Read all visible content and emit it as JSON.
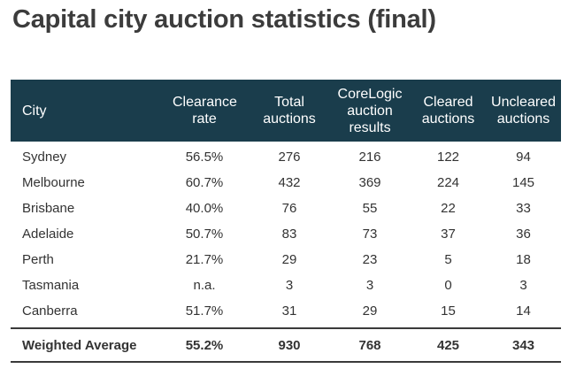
{
  "title": "Capital city auction statistics (final)",
  "table": {
    "headers": [
      "City",
      "Clearance rate",
      "Total auctions",
      "CoreLogic auction results",
      "Cleared auctions",
      "Uncleared auctions"
    ],
    "rows": [
      {
        "city": "Sydney",
        "clearance_rate": "56.5%",
        "total_auctions": "276",
        "corelogic_results": "216",
        "cleared": "122",
        "uncleared": "94"
      },
      {
        "city": "Melbourne",
        "clearance_rate": "60.7%",
        "total_auctions": "432",
        "corelogic_results": "369",
        "cleared": "224",
        "uncleared": "145"
      },
      {
        "city": "Brisbane",
        "clearance_rate": "40.0%",
        "total_auctions": "76",
        "corelogic_results": "55",
        "cleared": "22",
        "uncleared": "33"
      },
      {
        "city": "Adelaide",
        "clearance_rate": "50.7%",
        "total_auctions": "83",
        "corelogic_results": "73",
        "cleared": "37",
        "uncleared": "36"
      },
      {
        "city": "Perth",
        "clearance_rate": "21.7%",
        "total_auctions": "29",
        "corelogic_results": "23",
        "cleared": "5",
        "uncleared": "18"
      },
      {
        "city": "Tasmania",
        "clearance_rate": "n.a.",
        "total_auctions": "3",
        "corelogic_results": "3",
        "cleared": "0",
        "uncleared": "3"
      },
      {
        "city": "Canberra",
        "clearance_rate": "51.7%",
        "total_auctions": "31",
        "corelogic_results": "29",
        "cleared": "15",
        "uncleared": "14"
      }
    ],
    "total": {
      "city": "Weighted Average",
      "clearance_rate": "55.2%",
      "total_auctions": "930",
      "corelogic_results": "768",
      "cleared": "425",
      "uncleared": "343"
    }
  },
  "colors": {
    "header_bg": "#1a3d4c",
    "header_text": "#ffffff",
    "body_text": "#333333",
    "title_text": "#3c3c3c"
  }
}
